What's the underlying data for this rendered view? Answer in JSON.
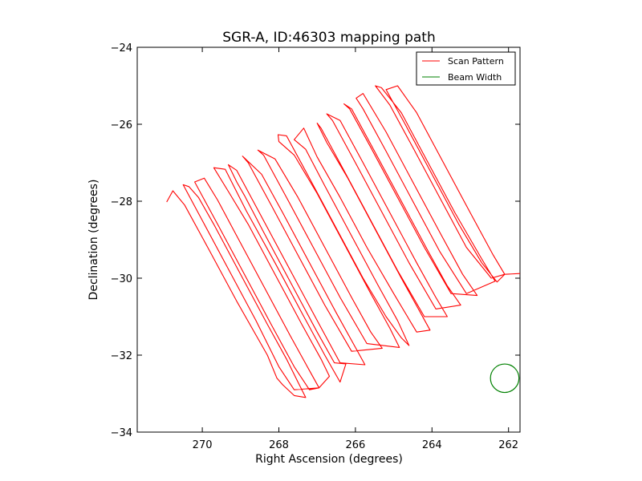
{
  "chart_data": {
    "type": "line",
    "title": "SGR-A, ID:46303 mapping path",
    "xlabel": "Right Ascension (degrees)",
    "ylabel": "Declination (degrees)",
    "xlim": [
      271.7,
      261.7
    ],
    "ylim": [
      -34,
      -24
    ],
    "x_inverted": true,
    "xticks": [
      270,
      268,
      266,
      264,
      262
    ],
    "xtick_labels": [
      "270",
      "268",
      "266",
      "264",
      "262"
    ],
    "yticks": [
      -24,
      -26,
      -28,
      -30,
      -32,
      -34
    ],
    "ytick_labels": [
      "−24",
      "−26",
      "−28",
      "−30",
      "−32",
      "−34"
    ],
    "grid": false,
    "legend_position": "top-right",
    "legend": [
      {
        "label": "Scan Pattern",
        "color": "#ff0000"
      },
      {
        "label": "Beam Width",
        "color": "#008000"
      }
    ],
    "series": [
      {
        "name": "Scan Pattern",
        "color": "#ff0000",
        "points": [
          [
            270.93,
            -28.02
          ],
          [
            270.77,
            -27.73
          ],
          [
            270.46,
            -28.1
          ],
          [
            269.82,
            -29.27
          ],
          [
            269.1,
            -30.6
          ],
          [
            268.3,
            -32.0
          ],
          [
            268.05,
            -32.6
          ],
          [
            267.9,
            -32.77
          ],
          [
            267.6,
            -33.05
          ],
          [
            267.3,
            -33.1
          ],
          [
            267.5,
            -32.7
          ],
          [
            267.8,
            -32.1
          ],
          [
            268.3,
            -31.2
          ],
          [
            269.0,
            -29.9
          ],
          [
            269.7,
            -28.6
          ],
          [
            270.1,
            -27.9
          ],
          [
            270.35,
            -27.62
          ],
          [
            270.5,
            -27.57
          ],
          [
            270.0,
            -28.5
          ],
          [
            269.3,
            -29.8
          ],
          [
            268.6,
            -31.1
          ],
          [
            268.0,
            -32.3
          ],
          [
            267.6,
            -32.9
          ],
          [
            266.95,
            -32.85
          ],
          [
            267.2,
            -32.4
          ],
          [
            267.7,
            -31.5
          ],
          [
            268.4,
            -30.2
          ],
          [
            269.1,
            -28.9
          ],
          [
            269.6,
            -27.97
          ],
          [
            269.95,
            -27.4
          ],
          [
            270.2,
            -27.5
          ],
          [
            269.6,
            -28.6
          ],
          [
            268.9,
            -29.9
          ],
          [
            268.2,
            -31.2
          ],
          [
            267.6,
            -32.3
          ],
          [
            267.2,
            -32.9
          ],
          [
            266.95,
            -32.85
          ],
          [
            266.68,
            -32.55
          ],
          [
            266.9,
            -32.1
          ],
          [
            267.4,
            -31.2
          ],
          [
            268.1,
            -29.9
          ],
          [
            268.8,
            -28.6
          ],
          [
            269.3,
            -27.78
          ],
          [
            269.7,
            -27.13
          ],
          [
            269.4,
            -27.17
          ],
          [
            268.85,
            -28.25
          ],
          [
            268.1,
            -29.6
          ],
          [
            267.4,
            -30.9
          ],
          [
            266.8,
            -32.0
          ],
          [
            266.4,
            -32.7
          ],
          [
            266.25,
            -32.23
          ],
          [
            266.55,
            -32.2
          ],
          [
            267.0,
            -31.4
          ],
          [
            267.7,
            -30.1
          ],
          [
            268.4,
            -28.8
          ],
          [
            268.9,
            -27.85
          ],
          [
            269.1,
            -27.5
          ],
          [
            269.32,
            -27.05
          ],
          [
            269.1,
            -27.2
          ],
          [
            268.4,
            -28.5
          ],
          [
            267.7,
            -29.8
          ],
          [
            267.0,
            -31.1
          ],
          [
            266.4,
            -32.2
          ],
          [
            265.75,
            -32.25
          ],
          [
            266.0,
            -31.8
          ],
          [
            266.5,
            -30.9
          ],
          [
            267.2,
            -29.6
          ],
          [
            267.9,
            -28.3
          ],
          [
            268.45,
            -27.3
          ],
          [
            268.95,
            -26.83
          ],
          [
            268.8,
            -27.0
          ],
          [
            268.2,
            -28.1
          ],
          [
            267.5,
            -29.4
          ],
          [
            266.8,
            -30.7
          ],
          [
            266.1,
            -31.9
          ],
          [
            265.3,
            -31.82
          ],
          [
            265.6,
            -31.4
          ],
          [
            266.1,
            -30.5
          ],
          [
            266.8,
            -29.2
          ],
          [
            267.5,
            -27.9
          ],
          [
            268.1,
            -26.9
          ],
          [
            268.55,
            -26.67
          ],
          [
            268.4,
            -26.8
          ],
          [
            267.8,
            -27.9
          ],
          [
            267.1,
            -29.2
          ],
          [
            266.4,
            -30.5
          ],
          [
            265.7,
            -31.7
          ],
          [
            264.85,
            -31.8
          ],
          [
            265.1,
            -31.3
          ],
          [
            265.6,
            -30.4
          ],
          [
            266.3,
            -29.1
          ],
          [
            267.0,
            -27.8
          ],
          [
            267.6,
            -26.8
          ],
          [
            268.0,
            -26.45
          ],
          [
            268.02,
            -26.27
          ],
          [
            267.8,
            -26.3
          ],
          [
            267.2,
            -27.4
          ],
          [
            266.5,
            -28.7
          ],
          [
            265.8,
            -30.0
          ],
          [
            265.2,
            -31.0
          ],
          [
            264.8,
            -31.55
          ],
          [
            264.6,
            -31.75
          ],
          [
            264.9,
            -31.1
          ],
          [
            265.4,
            -30.2
          ],
          [
            266.1,
            -28.9
          ],
          [
            266.8,
            -27.6
          ],
          [
            267.3,
            -26.65
          ],
          [
            267.6,
            -26.4
          ],
          [
            267.35,
            -26.1
          ],
          [
            267.0,
            -26.85
          ],
          [
            266.4,
            -27.9
          ],
          [
            265.7,
            -29.2
          ],
          [
            265.0,
            -30.4
          ],
          [
            264.4,
            -31.4
          ],
          [
            264.05,
            -31.35
          ],
          [
            264.3,
            -30.9
          ],
          [
            264.8,
            -30.0
          ],
          [
            265.5,
            -28.7
          ],
          [
            266.2,
            -27.4
          ],
          [
            266.75,
            -26.47
          ],
          [
            267.0,
            -25.97
          ],
          [
            266.9,
            -26.1
          ],
          [
            266.3,
            -27.2
          ],
          [
            265.6,
            -28.5
          ],
          [
            264.9,
            -29.8
          ],
          [
            264.2,
            -31.0
          ],
          [
            263.6,
            -31.0
          ],
          [
            263.9,
            -30.5
          ],
          [
            264.4,
            -29.6
          ],
          [
            265.1,
            -28.3
          ],
          [
            265.8,
            -27.0
          ],
          [
            266.4,
            -25.9
          ],
          [
            266.75,
            -25.73
          ],
          [
            266.6,
            -25.9
          ],
          [
            266.0,
            -27.0
          ],
          [
            265.3,
            -28.3
          ],
          [
            264.6,
            -29.6
          ],
          [
            263.9,
            -30.8
          ],
          [
            263.25,
            -30.7
          ],
          [
            263.6,
            -30.2
          ],
          [
            264.1,
            -29.3
          ],
          [
            264.8,
            -28.0
          ],
          [
            265.5,
            -26.7
          ],
          [
            266.1,
            -25.6
          ],
          [
            266.3,
            -25.47
          ],
          [
            266.15,
            -25.6
          ],
          [
            265.6,
            -26.6
          ],
          [
            264.9,
            -27.9
          ],
          [
            264.2,
            -29.2
          ],
          [
            263.5,
            -30.4
          ],
          [
            262.82,
            -30.45
          ],
          [
            263.2,
            -29.9
          ],
          [
            263.8,
            -28.8
          ],
          [
            264.5,
            -27.5
          ],
          [
            265.2,
            -26.2
          ],
          [
            265.8,
            -25.2
          ],
          [
            265.98,
            -25.32
          ],
          [
            265.8,
            -25.6
          ],
          [
            265.2,
            -26.7
          ],
          [
            264.5,
            -28.0
          ],
          [
            263.8,
            -29.3
          ],
          [
            263.1,
            -30.4
          ],
          [
            262.35,
            -30.08
          ],
          [
            262.7,
            -29.5
          ],
          [
            263.4,
            -28.3
          ],
          [
            264.1,
            -27.0
          ],
          [
            264.8,
            -25.7
          ],
          [
            265.32,
            -25.05
          ],
          [
            265.48,
            -25.0
          ],
          [
            265.1,
            -25.5
          ],
          [
            264.5,
            -26.6
          ],
          [
            263.8,
            -27.9
          ],
          [
            263.1,
            -29.2
          ],
          [
            262.45,
            -30.0
          ],
          [
            262.1,
            -29.9
          ],
          [
            262.4,
            -29.4
          ],
          [
            263.0,
            -28.3
          ],
          [
            263.7,
            -27.0
          ],
          [
            264.4,
            -25.7
          ],
          [
            264.9,
            -25.0
          ],
          [
            265.2,
            -25.1
          ],
          [
            264.7,
            -26.0
          ],
          [
            264.0,
            -27.3
          ],
          [
            263.3,
            -28.6
          ],
          [
            262.7,
            -29.6
          ],
          [
            262.3,
            -30.1
          ],
          [
            262.1,
            -29.9
          ],
          [
            261.7,
            -29.88
          ]
        ]
      },
      {
        "name": "Beam Width",
        "color": "#008000",
        "center": [
          262.1,
          -32.6
        ],
        "radius_deg": 0.37
      }
    ]
  }
}
